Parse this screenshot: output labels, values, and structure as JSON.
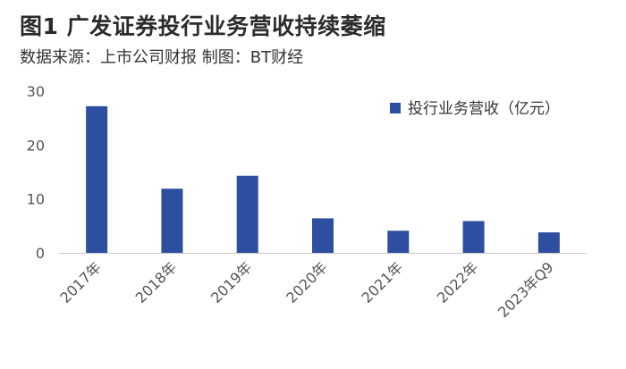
{
  "header": {
    "title": "图1 广发证券投行业务营收持续萎缩",
    "subtitle": "数据来源：上市公司财报 制图：BT财经"
  },
  "chart_data": {
    "type": "bar",
    "categories": [
      "2017年",
      "2018年",
      "2019年",
      "2020年",
      "2021年",
      "2022年",
      "2023年Q9"
    ],
    "series": [
      {
        "name": "投行业务营收（亿元）",
        "values": [
          27.2,
          11.9,
          14.3,
          6.4,
          4.1,
          5.9,
          3.8
        ]
      }
    ],
    "xlabel": "",
    "ylabel": "",
    "ylim": [
      0,
      30
    ],
    "yticks": [
      0,
      10,
      20,
      30
    ],
    "grid": false,
    "legend": "top-right",
    "bar_color": "#2e4f9f"
  }
}
